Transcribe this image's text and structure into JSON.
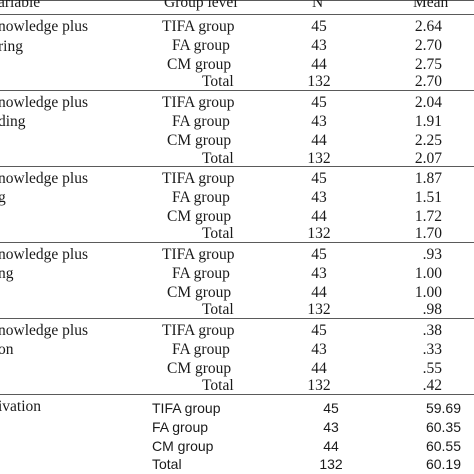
{
  "header": {
    "variable": "ariable",
    "group_level": "Group level",
    "n": "N",
    "mean": "Mean"
  },
  "sections": [
    {
      "var_lines": [
        "nowledge plus",
        "ring"
      ],
      "rows": [
        {
          "group": "TIFA  group",
          "n": "45",
          "mean": "2.64"
        },
        {
          "group": "FA group",
          "n": "43",
          "mean": "2.70"
        },
        {
          "group": "CM group",
          "n": "44",
          "mean": "2.75"
        },
        {
          "group": "Total",
          "n": "132",
          "mean": "2.70"
        }
      ]
    },
    {
      "var_lines": [
        "nowledge plus",
        "ding"
      ],
      "rows": [
        {
          "group": "TIFA  group",
          "n": "45",
          "mean": "2.04"
        },
        {
          "group": "FA group",
          "n": "43",
          "mean": "1.91"
        },
        {
          "group": "CM group",
          "n": "44",
          "mean": "2.25"
        },
        {
          "group": "Total",
          "n": "132",
          "mean": "2.07"
        }
      ]
    },
    {
      "var_lines": [
        "nowledge plus",
        "g"
      ],
      "rows": [
        {
          "group": "TIFA  group",
          "n": "45",
          "mean": "1.87"
        },
        {
          "group": "FA group",
          "n": "43",
          "mean": "1.51"
        },
        {
          "group": "CM group",
          "n": "44",
          "mean": "1.72"
        },
        {
          "group": "Total",
          "n": "132",
          "mean": "1.70"
        }
      ]
    },
    {
      "var_lines": [
        "nowledge plus",
        "ng"
      ],
      "rows": [
        {
          "group": "TIFA  group",
          "n": "45",
          "mean": ".93"
        },
        {
          "group": "FA group",
          "n": "43",
          "mean": "1.00"
        },
        {
          "group": "CM group",
          "n": "44",
          "mean": "1.00"
        },
        {
          "group": "Total",
          "n": "132",
          "mean": ".98"
        }
      ]
    },
    {
      "var_lines": [
        "nowledge plus",
        "on"
      ],
      "rows": [
        {
          "group": "TIFA  group",
          "n": "45",
          "mean": ".38"
        },
        {
          "group": "FA group",
          "n": "43",
          "mean": ".33"
        },
        {
          "group": "CM group",
          "n": "44",
          "mean": ".55"
        },
        {
          "group": "Total",
          "n": "132",
          "mean": ".42"
        }
      ]
    }
  ],
  "last_section": {
    "var_lines": [
      "ivation"
    ],
    "rows": [
      {
        "group": "TIFA group",
        "n": "45",
        "mean": "59.69"
      },
      {
        "group": "FA group",
        "n": "43",
        "mean": "60.35"
      },
      {
        "group": "CM group",
        "n": "44",
        "mean": "60.55"
      },
      {
        "group": "Total",
        "n": "132",
        "mean": "60.19"
      }
    ]
  }
}
